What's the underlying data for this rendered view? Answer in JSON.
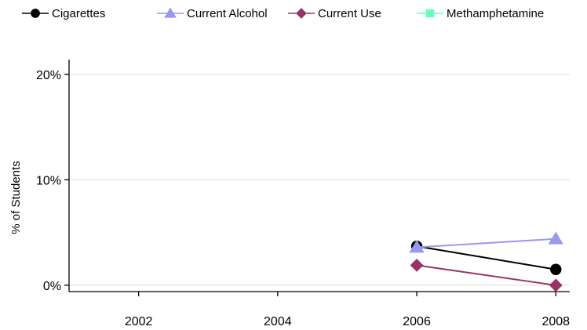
{
  "chart_data": {
    "type": "line",
    "ylabel": "% of Students",
    "xlim": [
      2001,
      2008.2
    ],
    "ylim": [
      -0.6,
      21.4
    ],
    "x_ticks": [
      2002,
      2004,
      2006,
      2008
    ],
    "x_tick_labels": [
      "2002",
      "2004",
      "2006",
      "2008"
    ],
    "y_ticks": [
      0,
      10,
      20
    ],
    "y_tick_labels": [
      "0%",
      "10%",
      "20%"
    ],
    "grid": "horizontal",
    "legend_position": "top",
    "series": [
      {
        "name": "Cigarettes",
        "color": "#000000",
        "marker": "circle",
        "points": [
          {
            "x": 2006,
            "y": 3.7
          },
          {
            "x": 2008,
            "y": 1.5
          }
        ]
      },
      {
        "name": "Current Alcohol",
        "color": "#9999ee",
        "marker": "triangle",
        "points": [
          {
            "x": 2006,
            "y": 3.6
          },
          {
            "x": 2008,
            "y": 4.4
          }
        ]
      },
      {
        "name": "Current Use",
        "color": "#993366",
        "marker": "diamond",
        "points": [
          {
            "x": 2006,
            "y": 1.9
          },
          {
            "x": 2008,
            "y": 0.0
          }
        ]
      },
      {
        "name": "Methamphetamine",
        "color": "#66ffbb",
        "marker": "square",
        "points": []
      }
    ]
  }
}
